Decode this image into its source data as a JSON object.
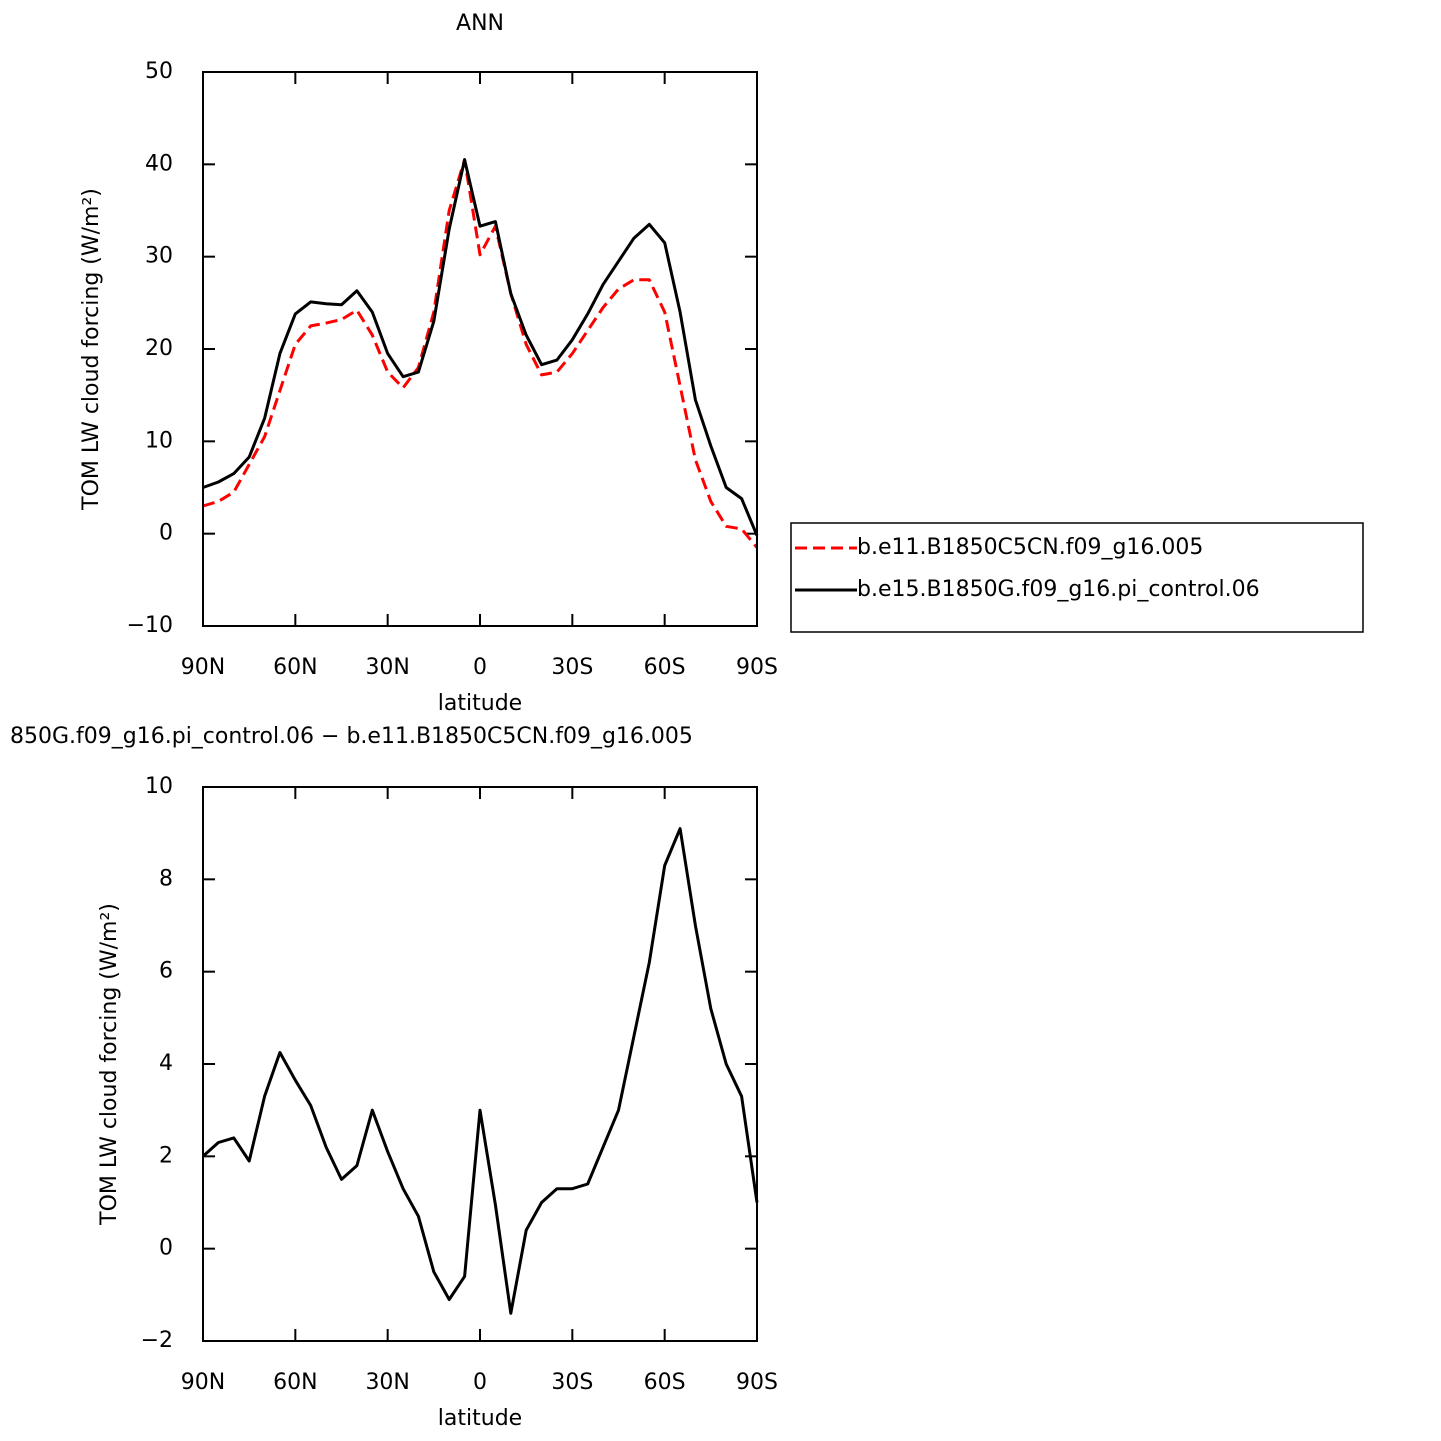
{
  "chart_data": [
    {
      "type": "line",
      "title": "ANN",
      "xlabel": "latitude",
      "ylabel": "TOM LW cloud forcing (W/m²)",
      "x": [
        90,
        85,
        80,
        75,
        70,
        65,
        60,
        55,
        50,
        45,
        40,
        35,
        30,
        25,
        20,
        15,
        10,
        5,
        0,
        -5,
        -10,
        -15,
        -20,
        -25,
        -30,
        -35,
        -40,
        -45,
        -50,
        -55,
        -60,
        -65,
        -70,
        -75,
        -80,
        -85,
        -90
      ],
      "series": [
        {
          "name": "b.e11.B1850C5CN.f09_g16.005",
          "color": "#ff0000",
          "line_style": "dashed",
          "values": [
            3.0,
            3.5,
            4.5,
            7.5,
            10.5,
            15.5,
            20.5,
            22.5,
            22.8,
            23.2,
            24.2,
            21.5,
            17.5,
            15.8,
            18,
            24,
            35,
            40.5,
            30.2,
            33.3,
            26,
            20.5,
            17.2,
            17.5,
            19.5,
            22,
            24.5,
            26.5,
            27.5,
            27.5,
            24,
            16,
            8,
            3.5,
            0.8,
            0.5,
            -1.5
          ]
        },
        {
          "name": "b.e15.B1850G.f09_g16.pi_control.06",
          "color": "#000000",
          "line_style": "solid",
          "values": [
            5.0,
            5.6,
            6.5,
            8.3,
            12.5,
            19.5,
            23.8,
            25.1,
            24.9,
            24.8,
            26.3,
            24,
            19.5,
            17.0,
            17.5,
            23,
            33,
            40.5,
            33.3,
            33.8,
            26,
            21.5,
            18.3,
            18.8,
            21,
            23.8,
            27,
            29.5,
            32,
            33.5,
            31.5,
            24,
            14.5,
            9.5,
            5.0,
            3.8,
            -0.2
          ]
        }
      ],
      "xlim": [
        90,
        -90
      ],
      "xticks": [
        {
          "value": 90,
          "label": "90N"
        },
        {
          "value": 60,
          "label": "60N"
        },
        {
          "value": 30,
          "label": "30N"
        },
        0,
        {
          "value": -30,
          "label": "30S"
        },
        {
          "value": -60,
          "label": "60S"
        },
        {
          "value": -90,
          "label": "90S"
        }
      ],
      "ylim": [
        -10,
        50
      ],
      "yticks": [
        {
          "value": -10,
          "label": "−10"
        },
        0,
        10,
        20,
        30,
        40,
        50
      ],
      "legend": "outside-right"
    },
    {
      "type": "line",
      "title": "850G.f09_g16.pi_control.06 − b.e11.B1850C5CN.f09_g16.005",
      "xlabel": "latitude",
      "ylabel": "TOM LW cloud forcing (W/m²)",
      "x": [
        90,
        85,
        80,
        75,
        70,
        65,
        60,
        55,
        50,
        45,
        40,
        35,
        30,
        25,
        20,
        15,
        10,
        5,
        0,
        -5,
        -10,
        -15,
        -20,
        -25,
        -30,
        -35,
        -40,
        -45,
        -50,
        -55,
        -60,
        -65,
        -70,
        -75,
        -80,
        -85,
        -90
      ],
      "color": "#000000",
      "values": [
        2.0,
        2.3,
        2.4,
        1.9,
        3.3,
        4.25,
        3.65,
        3.1,
        2.2,
        1.5,
        1.8,
        3.0,
        2.1,
        1.3,
        0.7,
        -0.5,
        -1.1,
        -0.6,
        3.0,
        0.95,
        -1.4,
        0.4,
        1.0,
        1.3,
        1.3,
        1.4,
        2.2,
        3.0,
        4.6,
        6.2,
        8.3,
        9.1,
        7.0,
        5.2,
        4.0,
        3.3,
        1.0
      ],
      "xlim": [
        90,
        -90
      ],
      "xticks": [
        {
          "value": 90,
          "label": "90N"
        },
        {
          "value": 60,
          "label": "60N"
        },
        {
          "value": 30,
          "label": "30N"
        },
        0,
        {
          "value": -30,
          "label": "30S"
        },
        {
          "value": -60,
          "label": "60S"
        },
        {
          "value": -90,
          "label": "90S"
        }
      ],
      "ylim": [
        -2,
        10
      ],
      "yticks": [
        {
          "value": -2,
          "label": "−2"
        },
        0,
        2,
        4,
        6,
        8,
        10
      ]
    }
  ]
}
